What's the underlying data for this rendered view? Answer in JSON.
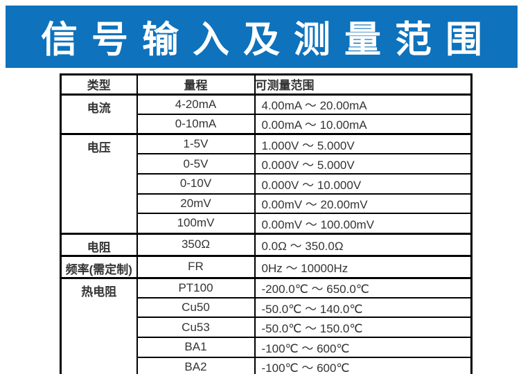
{
  "banner": {
    "title": "信号输入及测量范围",
    "bg_color": "#0e72bc",
    "text_color": "#ffffff"
  },
  "table": {
    "headers": [
      "类型",
      "量程",
      "可测量范围"
    ],
    "groups": [
      {
        "type": "电流",
        "rows": [
          {
            "range": "4-20mA",
            "measurable": "4.00mA ～ 20.00mA"
          },
          {
            "range": "0-10mA",
            "measurable": "0.00mA ～ 10.00mA"
          }
        ]
      },
      {
        "type": "电压",
        "rows": [
          {
            "range": "1-5V",
            "measurable": "1.000V ～ 5.000V"
          },
          {
            "range": "0-5V",
            "measurable": "0.000V ～ 5.000V"
          },
          {
            "range": "0-10V",
            "measurable": "0.000V ～ 10.000V"
          },
          {
            "range": "20mV",
            "measurable": "0.00mV ～ 20.00mV"
          },
          {
            "range": "100mV",
            "measurable": "0.00mV ～ 100.00mV"
          }
        ]
      },
      {
        "type": "电阻",
        "rows": [
          {
            "range": "350Ω",
            "measurable": "0.0Ω ～ 350.0Ω"
          }
        ]
      },
      {
        "type": "频率(需定制)",
        "rows": [
          {
            "range": "FR",
            "measurable": "0Hz ～ 10000Hz"
          }
        ]
      },
      {
        "type": "热电阻",
        "rows": [
          {
            "range": "PT100",
            "measurable": "-200.0℃ ～ 650.0℃"
          },
          {
            "range": "Cu50",
            "measurable": "-50.0℃ ～ 140.0℃"
          },
          {
            "range": "Cu53",
            "measurable": "-50.0℃ ～ 150.0℃"
          },
          {
            "range": "BA1",
            "measurable": "-100℃ ～ 600℃"
          },
          {
            "range": "BA2",
            "measurable": "-100℃ ～ 600℃"
          }
        ]
      }
    ]
  }
}
